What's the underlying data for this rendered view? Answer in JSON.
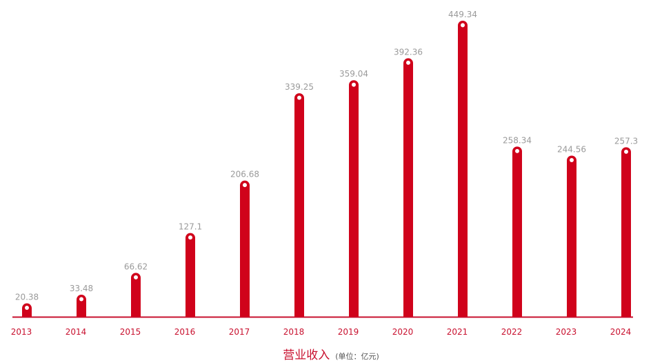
{
  "chart_data": {
    "type": "bar",
    "title": "营业收入",
    "unit": "(单位：亿元)",
    "categories": [
      "2013",
      "2014",
      "2015",
      "2016",
      "2017",
      "2018",
      "2019",
      "2020",
      "2021",
      "2022",
      "2023",
      "2024"
    ],
    "values": [
      20.38,
      33.48,
      66.62,
      127.1,
      206.68,
      339.25,
      359.04,
      392.36,
      449.34,
      258.34,
      244.56,
      257.3
    ],
    "value_labels": [
      "20.38",
      "33.48",
      "66.62",
      "127.1",
      "206.68",
      "339.25",
      "359.04",
      "392.36",
      "449.34",
      "258.34",
      "244.56",
      "257.3"
    ],
    "ylim": [
      0,
      449.34
    ],
    "grid": false,
    "legend": "none",
    "colors": {
      "bar": "#d0021b",
      "axis": "#c8102e",
      "tick_label": "#c8102e",
      "value_label": "#9a9a9a",
      "marker_dot": "#ffffff"
    }
  }
}
